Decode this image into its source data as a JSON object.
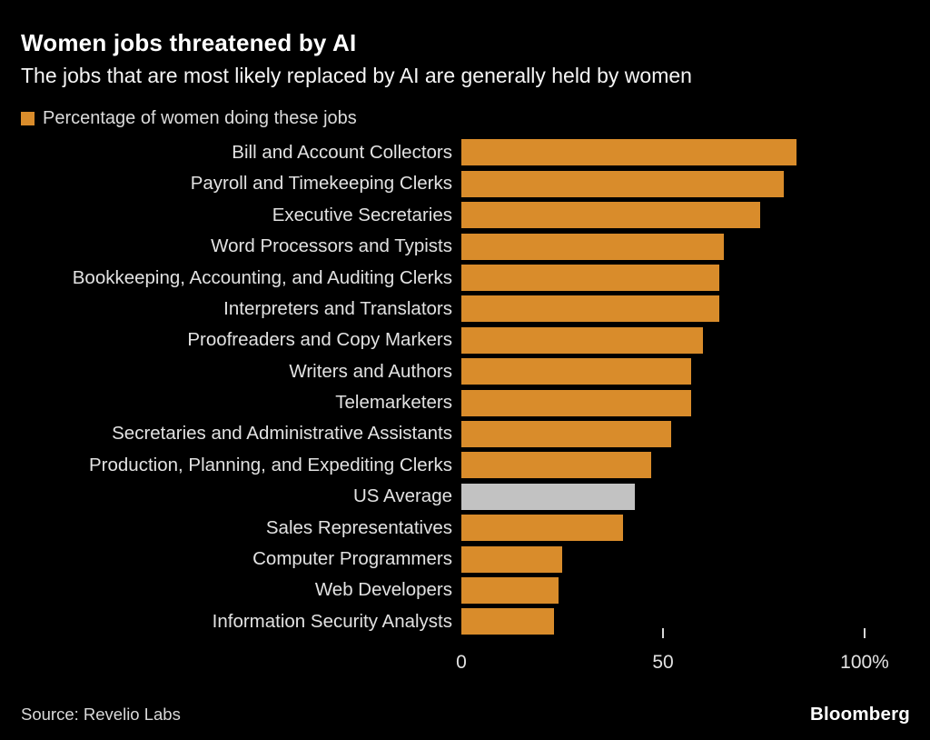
{
  "header": {
    "title": "Women jobs threatened by AI",
    "subtitle": "The jobs that are most likely replaced by AI are generally held by women"
  },
  "legend": {
    "label": "Percentage of women doing these jobs",
    "swatch_color": "#d98c2b"
  },
  "chart_data": {
    "type": "bar",
    "orientation": "horizontal",
    "title": "Women jobs threatened by AI",
    "subtitle": "The jobs that are most likely replaced by AI are generally held by women",
    "legend": [
      "Percentage of women doing these jobs"
    ],
    "legend_position": "top-left",
    "grid": false,
    "xlim": [
      0,
      100
    ],
    "categories": [
      "Bill and Account Collectors",
      "Payroll and Timekeeping Clerks",
      "Executive Secretaries",
      "Word Processors and Typists",
      "Bookkeeping, Accounting, and Auditing Clerks",
      "Interpreters and Translators",
      "Proofreaders and Copy Markers",
      "Writers and Authors",
      "Telemarketers",
      "Secretaries and Administrative Assistants",
      "Production, Planning, and Expediting Clerks",
      "US Average",
      "Sales Representatives",
      "Computer Programmers",
      "Web Developers",
      "Information Security Analysts"
    ],
    "values": [
      83,
      80,
      74,
      65,
      64,
      64,
      60,
      57,
      57,
      52,
      47,
      43,
      40,
      25,
      24,
      23
    ],
    "unit": "%",
    "bar_color": "#d98c2b",
    "highlight_category": "US Average",
    "highlight_color": "#c2c2c2",
    "x_ticks": [
      {
        "value": 0,
        "label": "0",
        "mark": false
      },
      {
        "value": 50,
        "label": "50",
        "mark": true
      },
      {
        "value": 100,
        "label": "100%",
        "mark": true
      }
    ]
  },
  "footer": {
    "source": "Source: Revelio Labs",
    "brand": "Bloomberg"
  },
  "colors": {
    "background": "#000000",
    "title_text": "#ffffff",
    "label_text": "#e2e2e2"
  }
}
